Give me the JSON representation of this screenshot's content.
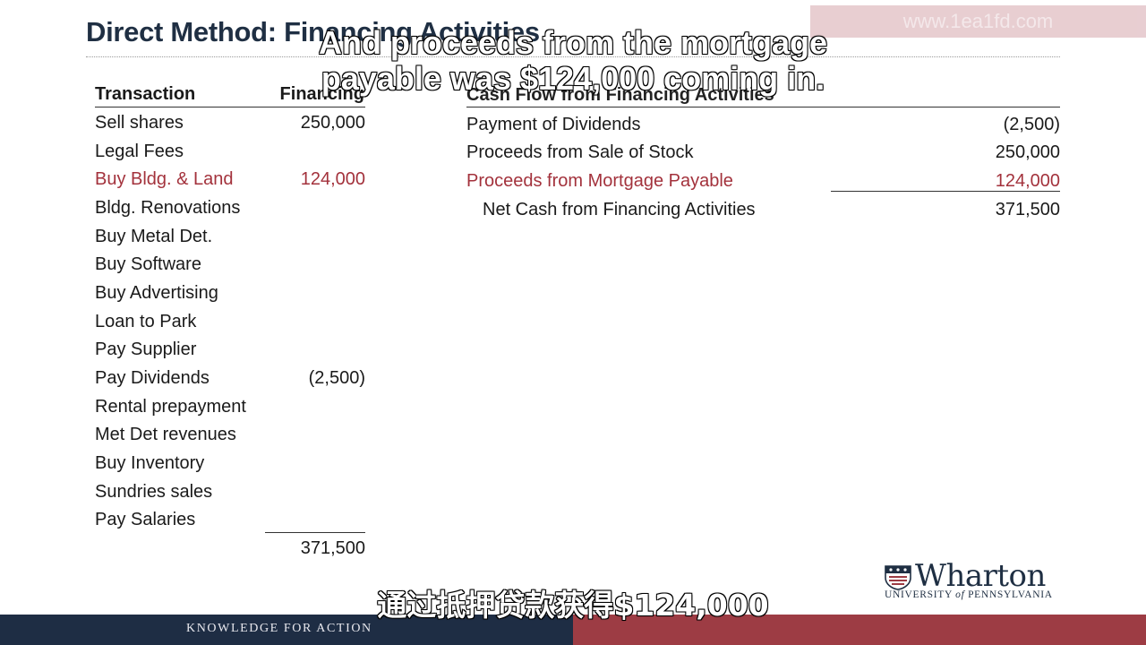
{
  "slide": {
    "title": "Direct Method: Financing Activities",
    "watermark": "www.1ea1fd.com"
  },
  "left_table": {
    "header_transaction": "Transaction",
    "header_financing": "Financing",
    "rows": [
      {
        "label": "Sell shares",
        "value": "250,000"
      },
      {
        "label": "Legal Fees",
        "value": ""
      },
      {
        "label": "Buy Bldg. & Land",
        "value": "124,000"
      },
      {
        "label": "Bldg. Renovations",
        "value": ""
      },
      {
        "label": "Buy Metal Det.",
        "value": ""
      },
      {
        "label": "Buy Software",
        "value": ""
      },
      {
        "label": "Buy Advertising",
        "value": ""
      },
      {
        "label": "Loan to Park",
        "value": ""
      },
      {
        "label": "Pay Supplier",
        "value": ""
      },
      {
        "label": "Pay Dividends",
        "value": "(2,500)"
      },
      {
        "label": "Rental prepayment",
        "value": ""
      },
      {
        "label": "Met Det revenues",
        "value": ""
      },
      {
        "label": "Buy Inventory",
        "value": ""
      },
      {
        "label": "Sundries sales",
        "value": ""
      },
      {
        "label": "Pay Salaries",
        "value": ""
      }
    ],
    "total": "371,500"
  },
  "right_table": {
    "header": "Cash Flow from Financing Activities",
    "rows": [
      {
        "label": "Payment of Dividends",
        "value": "(2,500)"
      },
      {
        "label": "Proceeds from Sale of Stock",
        "value": "250,000"
      },
      {
        "label": "Proceeds from Mortgage Payable",
        "value": "124,000"
      },
      {
        "label": "Net Cash from Financing Activities",
        "value": "371,500"
      }
    ]
  },
  "logo": {
    "word": "Wharton",
    "sub_a": "UNIVERSITY ",
    "sub_of": "of",
    "sub_b": " PENNSYLVANIA"
  },
  "footer": {
    "tagline": "KNOWLEDGE FOR ACTION"
  },
  "subtitles": {
    "english_line1": "And proceeds from the mortgage",
    "english_line2": "payable was $124,000 coming in.",
    "chinese": "通过抵押贷款获得$124,000"
  },
  "colors": {
    "highlight": "#a3323c",
    "navy": "#1e2d44",
    "maroon": "#9d3c44"
  }
}
